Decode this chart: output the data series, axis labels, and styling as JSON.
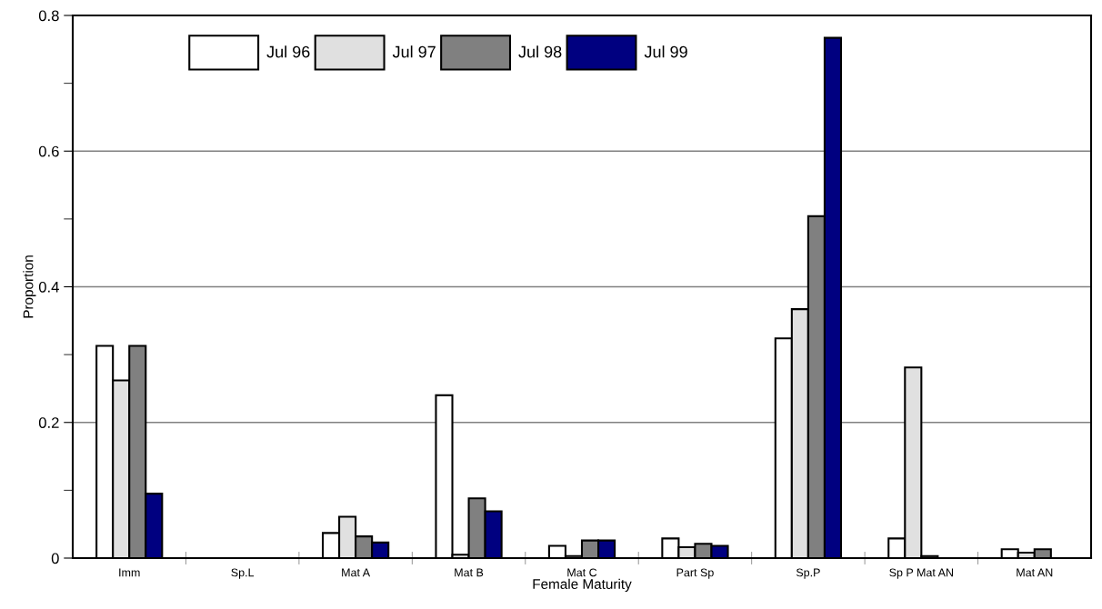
{
  "chart_data": {
    "type": "bar",
    "xlabel": "Female Maturity",
    "ylabel": "Proportion",
    "categories": [
      "Imm",
      "Sp.L",
      "Mat A",
      "Mat B",
      "Mat C",
      "Part Sp",
      "Sp.P",
      "Sp P Mat AN",
      "Mat AN"
    ],
    "series": [
      {
        "name": "Jul 96",
        "color": "#ffffff",
        "values": [
          0.313,
          0,
          0.037,
          0.24,
          0.018,
          0.029,
          0.324,
          0.029,
          0.013
        ]
      },
      {
        "name": "Jul 97",
        "color": "#e0e0e0",
        "values": [
          0.262,
          0,
          0.061,
          0.005,
          0.003,
          0.016,
          0.367,
          0.281,
          0.008
        ]
      },
      {
        "name": "Jul 98",
        "color": "#808080",
        "values": [
          0.313,
          0,
          0.032,
          0.088,
          0.026,
          0.021,
          0.504,
          0.003,
          0.013
        ]
      },
      {
        "name": "Jul 99",
        "color": "#000080",
        "values": [
          0.095,
          0,
          0.023,
          0.069,
          0.026,
          0.018,
          0.767,
          0,
          0
        ]
      }
    ],
    "ylim": [
      0,
      0.8
    ],
    "yticks": [
      0,
      {
        "value": 0.1,
        "label": null
      },
      0.2,
      {
        "value": 0.3,
        "label": null
      },
      0.4,
      {
        "value": 0.5,
        "label": null
      },
      0.6,
      {
        "value": 0.7,
        "label": null
      },
      0.8
    ],
    "grid": "y",
    "legend": "top left"
  }
}
